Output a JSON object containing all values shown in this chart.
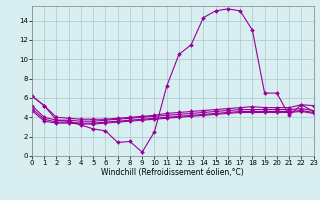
{
  "x": [
    0,
    1,
    2,
    3,
    4,
    5,
    6,
    7,
    8,
    9,
    10,
    11,
    12,
    13,
    14,
    15,
    16,
    17,
    18,
    19,
    20,
    21,
    22,
    23
  ],
  "line_main": [
    6.2,
    5.2,
    3.7,
    3.6,
    3.2,
    2.8,
    2.6,
    1.4,
    1.5,
    0.4,
    2.5,
    7.2,
    10.5,
    11.5,
    14.3,
    15.0,
    15.2,
    15.0,
    13.0,
    6.5,
    6.5,
    4.2,
    5.3,
    4.6
  ],
  "line_flat1": [
    6.2,
    5.2,
    4.0,
    3.9,
    3.8,
    3.8,
    3.8,
    3.9,
    4.0,
    4.1,
    4.2,
    4.4,
    4.5,
    4.6,
    4.7,
    4.8,
    4.9,
    5.0,
    5.1,
    5.0,
    5.0,
    5.0,
    5.3,
    5.2
  ],
  "line_flat2": [
    5.2,
    4.0,
    3.7,
    3.7,
    3.6,
    3.6,
    3.7,
    3.8,
    3.9,
    4.0,
    4.1,
    4.2,
    4.3,
    4.4,
    4.5,
    4.6,
    4.7,
    4.8,
    4.8,
    4.8,
    4.8,
    4.8,
    4.9,
    4.7
  ],
  "line_flat3": [
    4.9,
    3.8,
    3.5,
    3.5,
    3.4,
    3.4,
    3.5,
    3.6,
    3.7,
    3.8,
    3.9,
    4.0,
    4.1,
    4.2,
    4.3,
    4.4,
    4.5,
    4.6,
    4.6,
    4.6,
    4.6,
    4.6,
    4.7,
    4.5
  ],
  "line_flat4": [
    4.7,
    3.6,
    3.4,
    3.4,
    3.3,
    3.3,
    3.4,
    3.5,
    3.6,
    3.7,
    3.8,
    3.9,
    4.0,
    4.1,
    4.2,
    4.3,
    4.4,
    4.5,
    4.5,
    4.5,
    4.5,
    4.5,
    4.6,
    4.4
  ],
  "color": "#990099",
  "bg_color": "#d8eef0",
  "grid_color": "#aac8cc",
  "xlabel": "Windchill (Refroidissement éolien,°C)",
  "xlim": [
    0,
    23
  ],
  "ylim": [
    0,
    15.5
  ],
  "marker": "D",
  "markersize": 2.0,
  "linewidth": 0.8,
  "tick_fontsize": 5,
  "xlabel_fontsize": 5.5
}
